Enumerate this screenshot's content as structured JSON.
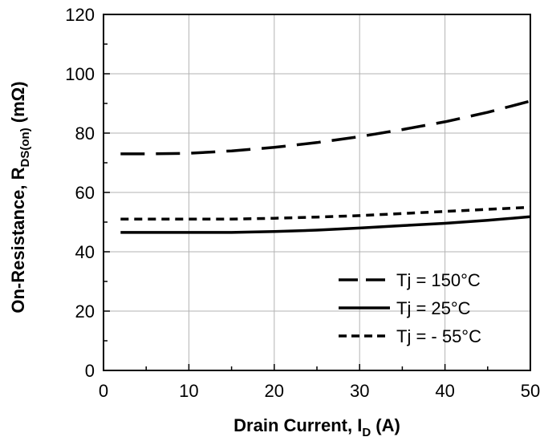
{
  "chart_data": {
    "type": "line",
    "title": "",
    "xlabel": {
      "main": "Drain Current, I",
      "sub": "D",
      "unit": " (A)"
    },
    "ylabel": {
      "main": "On-Resistance, R",
      "sub": "DS(on)",
      "unit": " (mΩ)"
    },
    "xlim": [
      0,
      50
    ],
    "ylim": [
      0,
      120
    ],
    "xticks": [
      0,
      10,
      20,
      30,
      40,
      50
    ],
    "yticks": [
      0,
      20,
      40,
      60,
      80,
      100,
      120
    ],
    "grid": true,
    "legend_position": "bottom-right",
    "series": [
      {
        "name": "Tj = 150°C",
        "style": "long-dash",
        "color": "#000000",
        "x": [
          2,
          5,
          10,
          15,
          20,
          25,
          30,
          35,
          40,
          45,
          50
        ],
        "y": [
          73,
          73,
          73.2,
          74,
          75.2,
          76.8,
          78.8,
          81.2,
          83.8,
          87,
          90.8
        ]
      },
      {
        "name": "Tj = 25°C",
        "style": "solid",
        "color": "#000000",
        "x": [
          2,
          5,
          10,
          15,
          20,
          25,
          30,
          35,
          40,
          45,
          50
        ],
        "y": [
          46.5,
          46.5,
          46.5,
          46.5,
          46.8,
          47.3,
          48,
          48.8,
          49.6,
          50.6,
          51.8
        ]
      },
      {
        "name": "Tj = - 55°C",
        "style": "short-dash",
        "color": "#000000",
        "x": [
          2,
          5,
          10,
          15,
          20,
          25,
          30,
          35,
          40,
          45,
          50
        ],
        "y": [
          51,
          51,
          51,
          51,
          51.3,
          51.7,
          52.2,
          52.9,
          53.6,
          54.3,
          55
        ]
      }
    ]
  }
}
